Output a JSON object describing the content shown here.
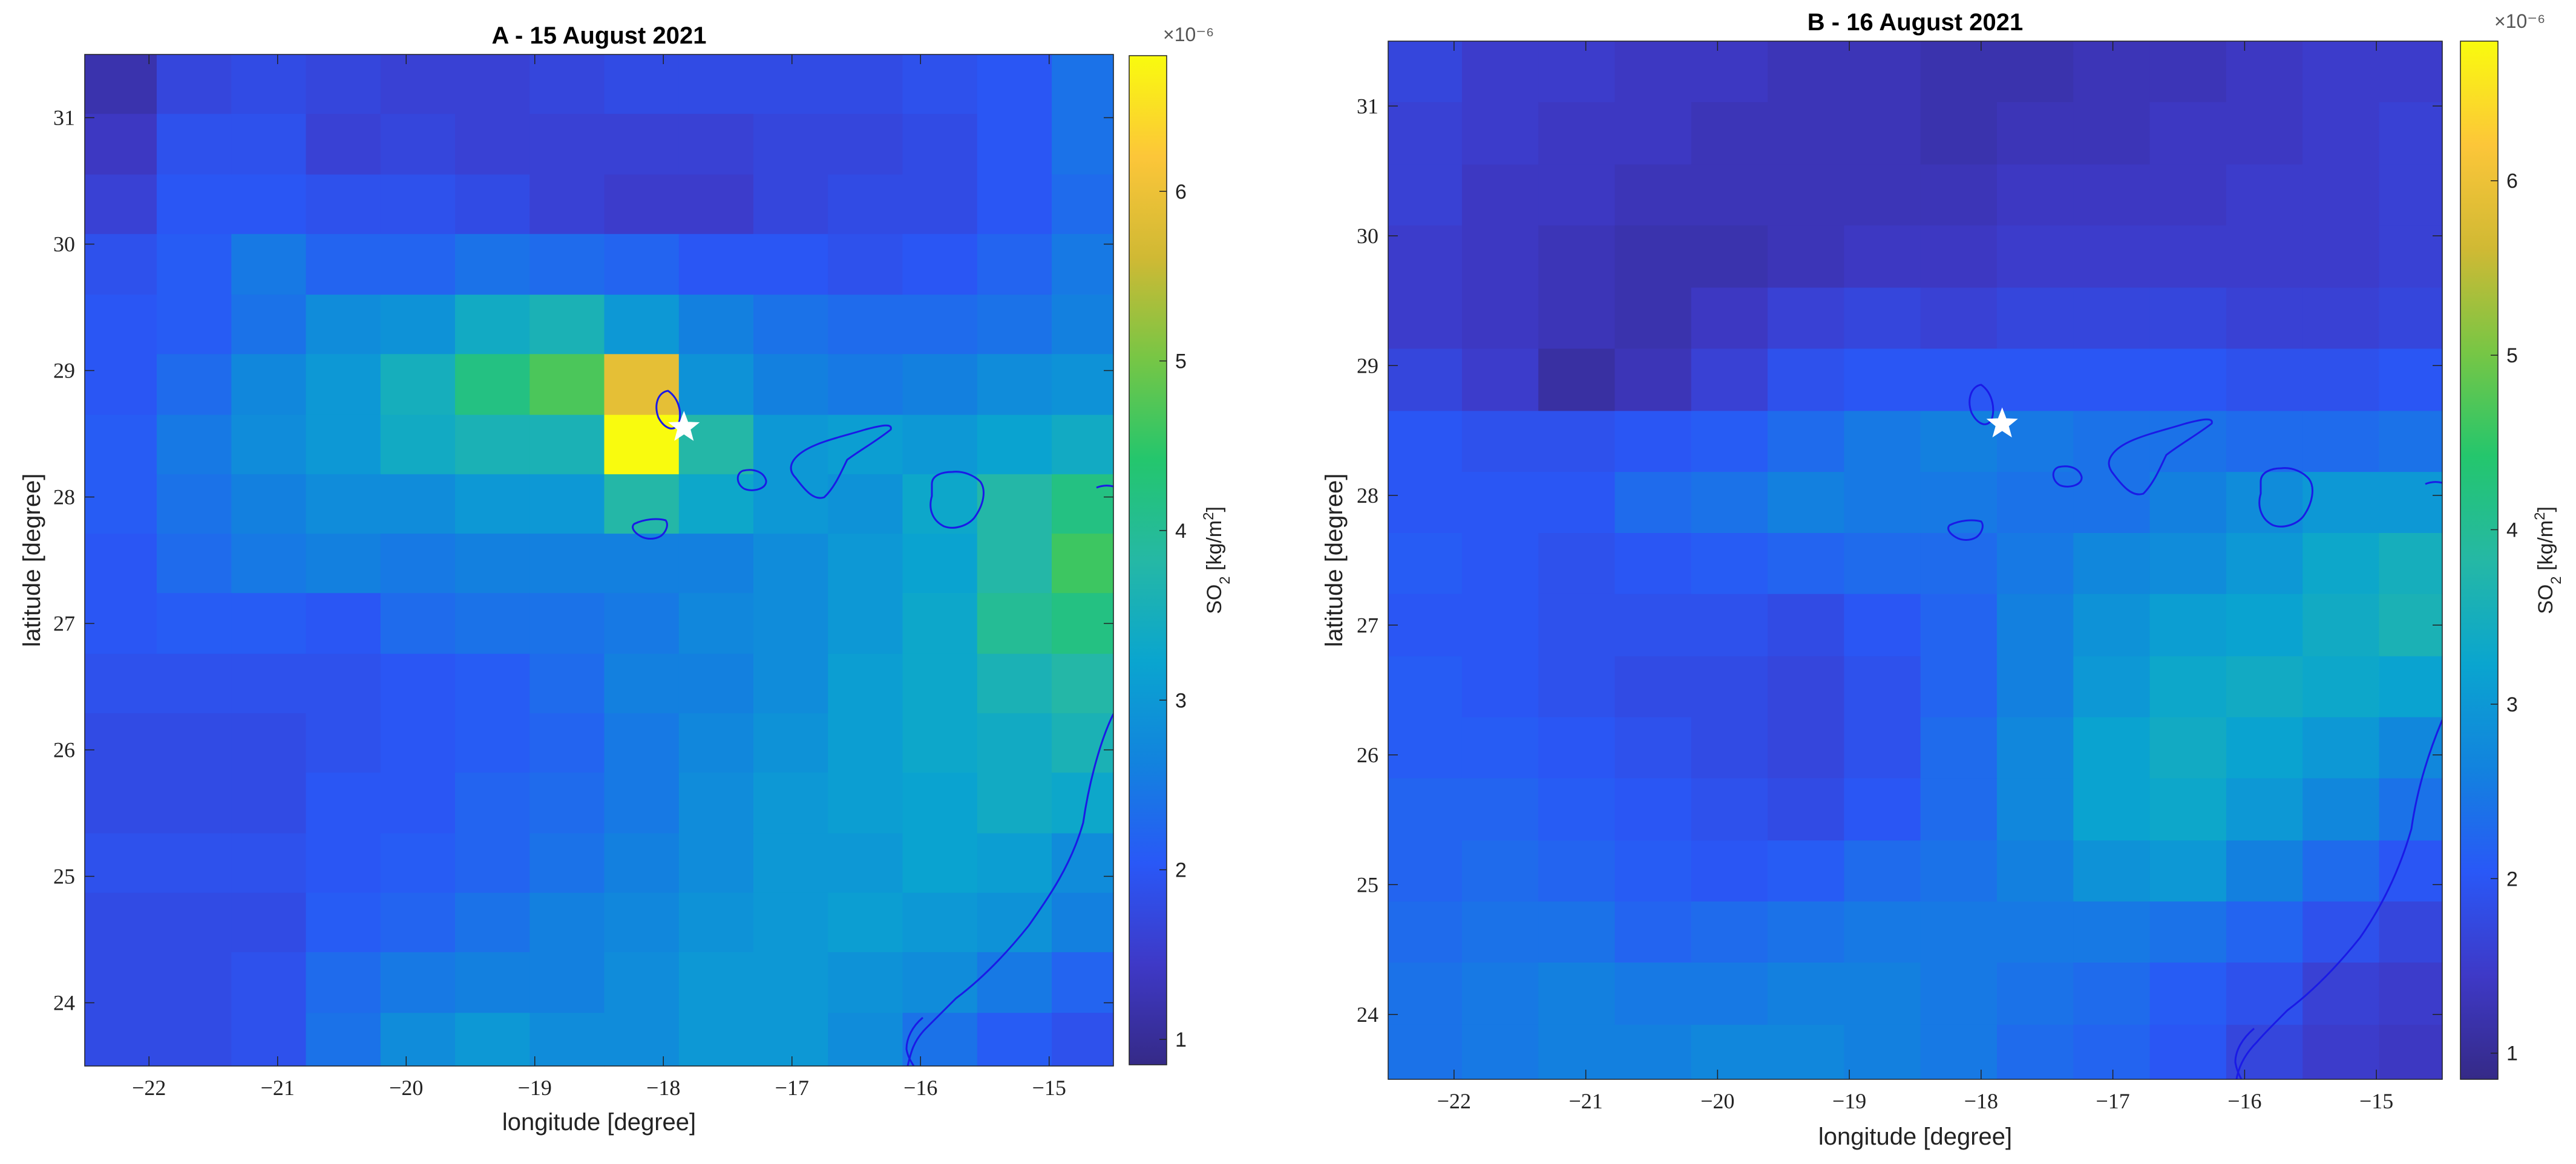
{
  "chart_data": [
    {
      "type": "heatmap",
      "title": "A - 15 August 2021",
      "xlabel": "longitude [degree]",
      "ylabel": "latitude [degree]",
      "xlim": [
        -22.5,
        -14.5
      ],
      "ylim": [
        23.5,
        31.5
      ],
      "xticks": [
        -22,
        -21,
        -20,
        -19,
        -18,
        -17,
        -16,
        -15
      ],
      "yticks": [
        24,
        25,
        26,
        27,
        28,
        29,
        30,
        31
      ],
      "cells_origin": "top-left",
      "cell_lon_edges": [
        -22.5,
        -21.94,
        -21.36,
        -20.78,
        -20.2,
        -19.62,
        -19.04,
        -18.46,
        -17.88,
        -17.3,
        -16.72,
        -16.14,
        -15.56,
        -14.98,
        -14.5
      ],
      "cell_lat_edges": [
        31.5,
        31.03,
        30.55,
        30.08,
        29.6,
        29.13,
        28.65,
        28.18,
        27.71,
        27.24,
        26.76,
        26.29,
        25.82,
        25.34,
        24.87,
        24.4,
        23.92,
        23.5
      ],
      "values_1e-6": [
        [
          1.2,
          1.7,
          1.8,
          1.7,
          1.6,
          1.6,
          1.7,
          1.8,
          1.8,
          1.8,
          1.8,
          1.9,
          2.0,
          2.4
        ],
        [
          1.4,
          1.9,
          1.9,
          1.6,
          1.7,
          1.6,
          1.6,
          1.6,
          1.6,
          1.7,
          1.7,
          1.8,
          2.0,
          2.4
        ],
        [
          1.6,
          2.0,
          2.0,
          1.9,
          1.9,
          1.8,
          1.6,
          1.5,
          1.5,
          1.7,
          1.8,
          1.8,
          2.0,
          2.3
        ],
        [
          1.9,
          2.1,
          2.5,
          2.2,
          2.2,
          2.4,
          2.3,
          2.2,
          2.0,
          2.0,
          1.9,
          2.0,
          2.2,
          2.5
        ],
        [
          2.0,
          2.1,
          2.4,
          2.8,
          2.9,
          3.4,
          3.6,
          3.0,
          2.6,
          2.4,
          2.3,
          2.3,
          2.4,
          2.6
        ],
        [
          2.0,
          2.3,
          2.7,
          3.0,
          3.5,
          4.2,
          4.7,
          5.9,
          2.9,
          2.6,
          2.5,
          2.6,
          2.8,
          2.9
        ],
        [
          2.1,
          2.5,
          2.8,
          3.0,
          3.4,
          3.6,
          3.6,
          6.8,
          3.8,
          3.0,
          3.1,
          3.0,
          3.2,
          3.4
        ],
        [
          2.1,
          2.4,
          2.6,
          2.8,
          2.8,
          3.0,
          3.0,
          3.8,
          3.3,
          3.0,
          2.9,
          3.3,
          3.8,
          4.2
        ],
        [
          2.0,
          2.3,
          2.5,
          2.6,
          2.5,
          2.6,
          2.6,
          2.6,
          2.6,
          2.8,
          3.0,
          3.2,
          3.8,
          4.6
        ],
        [
          2.0,
          2.1,
          2.1,
          2.0,
          2.3,
          2.4,
          2.4,
          2.5,
          2.7,
          2.8,
          3.0,
          3.3,
          4.0,
          4.2
        ],
        [
          1.9,
          1.9,
          1.9,
          1.9,
          2.0,
          2.1,
          2.3,
          2.6,
          2.6,
          2.8,
          3.1,
          3.3,
          3.6,
          3.8
        ],
        [
          1.8,
          1.8,
          1.8,
          1.9,
          2.0,
          2.1,
          2.2,
          2.5,
          2.7,
          2.9,
          3.1,
          3.3,
          3.4,
          3.6
        ],
        [
          1.8,
          1.8,
          1.8,
          2.0,
          2.0,
          2.2,
          2.3,
          2.5,
          2.8,
          3.0,
          3.1,
          3.2,
          3.4,
          3.3
        ],
        [
          1.9,
          1.9,
          1.9,
          2.0,
          2.1,
          2.2,
          2.4,
          2.6,
          2.8,
          3.0,
          3.0,
          3.2,
          3.1,
          2.8
        ],
        [
          1.8,
          1.8,
          1.8,
          2.1,
          2.2,
          2.4,
          2.6,
          2.7,
          2.9,
          3.0,
          3.1,
          3.0,
          2.9,
          2.6
        ],
        [
          1.8,
          1.8,
          1.9,
          2.3,
          2.5,
          2.6,
          2.6,
          2.8,
          3.0,
          3.0,
          2.9,
          2.8,
          2.5,
          2.2
        ],
        [
          1.8,
          1.8,
          1.9,
          2.4,
          2.8,
          3.0,
          2.8,
          2.8,
          3.0,
          3.0,
          2.8,
          2.4,
          2.1,
          1.9
        ]
      ],
      "markers": [
        {
          "symbol": "star",
          "lon": -17.84,
          "lat": 28.55,
          "color": "#ffffff"
        }
      ],
      "colorbar": {
        "label": "SO2 [kg/m2]",
        "multiplier": "×10⁻⁶",
        "ticks": [
          1,
          2,
          3,
          4,
          5,
          6
        ],
        "cmin": 0.85,
        "cmax": 6.8,
        "colormap": "parula"
      }
    },
    {
      "type": "heatmap",
      "title": "B - 16 August 2021",
      "xlabel": "longitude [degree]",
      "ylabel": "latitude [degree]",
      "xlim": [
        -22.5,
        -14.5
      ],
      "ylim": [
        23.5,
        31.5
      ],
      "xticks": [
        -22,
        -21,
        -20,
        -19,
        -18,
        -17,
        -16,
        -15
      ],
      "yticks": [
        24,
        25,
        26,
        27,
        28,
        29,
        30,
        31
      ],
      "cells_origin": "top-left",
      "cell_lon_edges": [
        -22.5,
        -21.94,
        -21.36,
        -20.78,
        -20.2,
        -19.62,
        -19.04,
        -18.46,
        -17.88,
        -17.3,
        -16.72,
        -16.14,
        -15.56,
        -14.98,
        -14.5
      ],
      "cell_lat_edges": [
        31.5,
        31.03,
        30.55,
        30.08,
        29.6,
        29.13,
        28.65,
        28.18,
        27.71,
        27.24,
        26.76,
        26.29,
        25.82,
        25.34,
        24.87,
        24.4,
        23.92,
        23.5
      ],
      "values_1e-6": [
        [
          1.7,
          1.5,
          1.5,
          1.4,
          1.4,
          1.3,
          1.3,
          1.2,
          1.2,
          1.3,
          1.3,
          1.4,
          1.5,
          1.5
        ],
        [
          1.6,
          1.5,
          1.4,
          1.4,
          1.3,
          1.3,
          1.3,
          1.2,
          1.3,
          1.3,
          1.4,
          1.4,
          1.5,
          1.6
        ],
        [
          1.6,
          1.4,
          1.4,
          1.3,
          1.3,
          1.3,
          1.3,
          1.3,
          1.4,
          1.4,
          1.4,
          1.5,
          1.5,
          1.6
        ],
        [
          1.5,
          1.4,
          1.3,
          1.2,
          1.2,
          1.3,
          1.4,
          1.4,
          1.5,
          1.5,
          1.5,
          1.5,
          1.5,
          1.6
        ],
        [
          1.5,
          1.4,
          1.3,
          1.2,
          1.4,
          1.6,
          1.7,
          1.6,
          1.7,
          1.7,
          1.7,
          1.6,
          1.6,
          1.7
        ],
        [
          1.7,
          1.5,
          1.1,
          1.3,
          1.6,
          1.9,
          2.0,
          2.0,
          2.0,
          2.0,
          2.0,
          1.9,
          1.9,
          2.0
        ],
        [
          2.0,
          1.9,
          1.9,
          2.0,
          2.1,
          2.3,
          2.5,
          2.6,
          2.5,
          2.4,
          2.4,
          2.3,
          2.3,
          2.4
        ],
        [
          2.0,
          2.0,
          2.0,
          2.3,
          2.4,
          2.6,
          2.5,
          2.5,
          2.4,
          2.4,
          2.6,
          2.8,
          3.0,
          3.0
        ],
        [
          2.1,
          2.0,
          1.9,
          2.0,
          2.1,
          2.2,
          2.3,
          2.3,
          2.5,
          2.7,
          2.8,
          3.0,
          3.3,
          3.5
        ],
        [
          2.0,
          2.0,
          1.9,
          1.9,
          1.9,
          1.8,
          2.0,
          2.2,
          2.6,
          2.9,
          3.1,
          3.2,
          3.4,
          3.6
        ],
        [
          2.1,
          2.0,
          1.9,
          1.8,
          1.8,
          1.7,
          1.9,
          2.2,
          2.6,
          3.0,
          3.3,
          3.4,
          3.3,
          3.2
        ],
        [
          2.1,
          2.1,
          2.0,
          1.9,
          1.8,
          1.7,
          1.9,
          2.3,
          2.7,
          3.2,
          3.4,
          3.2,
          3.0,
          2.7
        ],
        [
          2.2,
          2.2,
          2.1,
          2.0,
          1.9,
          1.8,
          2.0,
          2.3,
          2.7,
          3.2,
          3.3,
          3.0,
          2.7,
          2.4
        ],
        [
          2.2,
          2.3,
          2.2,
          2.1,
          2.0,
          2.1,
          2.3,
          2.4,
          2.6,
          2.9,
          3.0,
          2.6,
          2.3,
          2.0
        ],
        [
          2.3,
          2.4,
          2.4,
          2.2,
          2.3,
          2.4,
          2.5,
          2.5,
          2.5,
          2.5,
          2.4,
          2.2,
          1.9,
          1.7
        ],
        [
          2.4,
          2.5,
          2.6,
          2.5,
          2.5,
          2.6,
          2.6,
          2.5,
          2.4,
          2.3,
          2.1,
          1.9,
          1.6,
          1.5
        ],
        [
          2.4,
          2.5,
          2.6,
          2.6,
          2.7,
          2.7,
          2.6,
          2.5,
          2.3,
          2.2,
          2.0,
          1.7,
          1.5,
          1.4
        ]
      ],
      "markers": [
        {
          "symbol": "star",
          "lon": -17.84,
          "lat": 28.55,
          "color": "#ffffff"
        }
      ],
      "colorbar": {
        "label": "SO2 [kg/m2]",
        "multiplier": "×10⁻⁶",
        "ticks": [
          1,
          2,
          3,
          4,
          5,
          6
        ],
        "cmin": 0.85,
        "cmax": 6.8,
        "colormap": "parula"
      }
    }
  ],
  "colors": {
    "coastline": "#1a1ae6",
    "axis": "#222222",
    "star": "#ffffff"
  }
}
